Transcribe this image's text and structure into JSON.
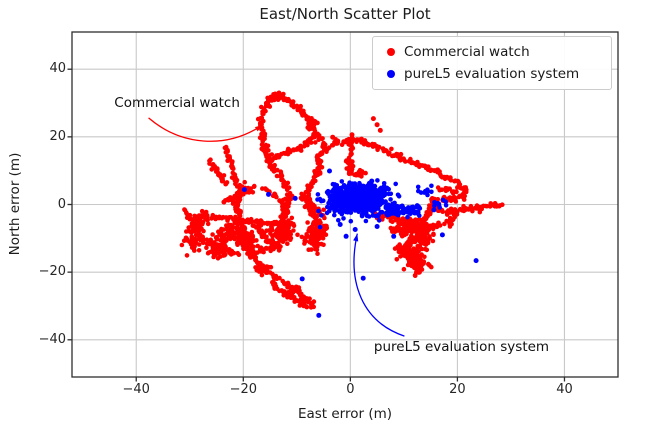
{
  "chart_data": {
    "type": "scatter",
    "title": "East/North Scatter Plot",
    "xlabel": "East error (m)",
    "ylabel": "North error (m)",
    "xlim": [
      -52,
      50
    ],
    "ylim": [
      -51,
      51
    ],
    "xticks": [
      -40,
      -20,
      0,
      20,
      40
    ],
    "yticks": [
      -40,
      -20,
      0,
      20,
      40
    ],
    "grid": true,
    "grid_color": "#c9c9c9",
    "spine_color": "#2e2e2e",
    "legend_position": "upper right",
    "series": [
      {
        "name": "Commercial watch",
        "color": "#ff0000",
        "marker_radius_px": 2.3,
        "pattern": "gps-track",
        "track_paths": [
          [
            [
              -15.4,
              13.2
            ],
            [
              -15.9,
              16.5
            ],
            [
              -16.3,
              20
            ],
            [
              -16.6,
              24
            ],
            [
              -16.2,
              28
            ],
            [
              -15.1,
              31
            ],
            [
              -13.9,
              32.6
            ],
            [
              -12.5,
              31.8
            ],
            [
              -10.8,
              29.8
            ],
            [
              -9,
              27.4
            ],
            [
              -7.6,
              24.6
            ],
            [
              -6.6,
              22
            ],
            [
              -6.3,
              20.8
            ],
            [
              -7.6,
              18.8
            ],
            [
              -9.6,
              16.8
            ],
            [
              -11.8,
              15.2
            ],
            [
              -13.8,
              14
            ],
            [
              -15.4,
              13.2
            ]
          ],
          [
            [
              -15.4,
              13.2
            ],
            [
              -14.2,
              10.8
            ],
            [
              -13,
              8.4
            ],
            [
              -12.1,
              5.8
            ],
            [
              -11.5,
              3
            ],
            [
              -11.7,
              0.4
            ],
            [
              -12.2,
              -2.2
            ],
            [
              -12.5,
              -4.8
            ],
            [
              -12.9,
              -7.4
            ],
            [
              -13.1,
              -10
            ]
          ],
          [
            [
              -5.6,
              10.6
            ],
            [
              -6.1,
              13.4
            ],
            [
              -4.9,
              16.4
            ],
            [
              -2.6,
              18.3
            ],
            [
              -0.2,
              18.9
            ],
            [
              2.3,
              18.4
            ],
            [
              4.8,
              17
            ],
            [
              7.3,
              15.2
            ],
            [
              9.8,
              13.6
            ],
            [
              12.2,
              12
            ],
            [
              14.4,
              10.7
            ]
          ],
          [
            [
              -5.6,
              10.6
            ],
            [
              -6.6,
              8
            ],
            [
              -7.6,
              5.2
            ],
            [
              -8.2,
              2.4
            ],
            [
              -8,
              -0.4
            ],
            [
              -7.1,
              -3
            ],
            [
              -5.7,
              -5.2
            ],
            [
              -4.3,
              -6.9
            ]
          ],
          [
            [
              14.4,
              10.7
            ],
            [
              16.4,
              9.4
            ],
            [
              18.4,
              7.8
            ],
            [
              20.2,
              6
            ],
            [
              21.4,
              4.2
            ],
            [
              21.2,
              2.6
            ],
            [
              19.6,
              1.8
            ],
            [
              17.4,
              1.8
            ],
            [
              15.4,
              1.2
            ],
            [
              15,
              -0.6
            ],
            [
              16.6,
              -1.8
            ],
            [
              19,
              -2
            ],
            [
              21.6,
              -1.4
            ],
            [
              24,
              -0.6
            ],
            [
              26.5,
              -0.2
            ],
            [
              28.4,
              -0.5
            ]
          ],
          [
            [
              16.8,
              4.8
            ],
            [
              18.4,
              4.4
            ],
            [
              19.9,
              3.7
            ]
          ],
          [
            [
              19.8,
              -2.6
            ],
            [
              18.8,
              -4.4
            ],
            [
              18.2,
              -6.3
            ]
          ],
          [
            [
              15.2,
              -1
            ],
            [
              14.2,
              -3.2
            ],
            [
              13.6,
              -5.6
            ],
            [
              13,
              -7.8
            ]
          ],
          [
            [
              9.6,
              -13.4
            ],
            [
              11,
              -15.8
            ],
            [
              12.4,
              -17.8
            ],
            [
              13,
              -19.8
            ],
            [
              12.2,
              -20.9
            ]
          ],
          [
            [
              -20,
              6.2
            ],
            [
              -20.6,
              3.4
            ],
            [
              -21,
              0.6
            ],
            [
              -21,
              -2.4
            ],
            [
              -20.6,
              -5.4
            ],
            [
              -20.2,
              -8.2
            ],
            [
              -19.6,
              -11.2
            ],
            [
              -19.2,
              -14
            ]
          ],
          [
            [
              -28.6,
              -3.2
            ],
            [
              -25.6,
              -3.8
            ],
            [
              -22.6,
              -4.2
            ],
            [
              -19.6,
              -4.8
            ],
            [
              -16.6,
              -5.2
            ],
            [
              -13.6,
              -5.8
            ],
            [
              -10.9,
              -6.2
            ]
          ],
          [
            [
              -29.4,
              -8
            ],
            [
              -27.4,
              -10
            ],
            [
              -25.4,
              -12
            ],
            [
              -23.4,
              -13.8
            ],
            [
              -21.2,
              -14.6
            ]
          ],
          [
            [
              -17.6,
              5.4
            ],
            [
              -19.6,
              3.8
            ],
            [
              -21.6,
              2.2
            ],
            [
              -23.6,
              0.8
            ]
          ],
          [
            [
              -16.2,
              4.6
            ],
            [
              -14.2,
              2.6
            ],
            [
              -12.7,
              0.6
            ],
            [
              -12.1,
              -1.6
            ],
            [
              -12,
              -4
            ]
          ],
          [
            [
              -9.2,
              2.2
            ],
            [
              -7.4,
              0.2
            ],
            [
              -5.9,
              -1.8
            ],
            [
              -4.9,
              -3.9
            ]
          ],
          [
            [
              -18,
              -6
            ],
            [
              -16.5,
              -8.5
            ],
            [
              -15.1,
              -11
            ],
            [
              -13.6,
              -13.4
            ]
          ],
          [
            [
              -13,
              -11
            ],
            [
              -14.6,
              -12.5
            ],
            [
              -16.6,
              -13.5
            ],
            [
              -18.6,
              -14
            ]
          ],
          [
            [
              -23.2,
              17
            ],
            [
              -22.6,
              14
            ],
            [
              -22.1,
              11
            ],
            [
              -21.6,
              8
            ],
            [
              -21.1,
              5.5
            ]
          ],
          [
            [
              -26.2,
              13
            ],
            [
              -25.2,
              10.5
            ],
            [
              -24.2,
              8
            ],
            [
              -23.2,
              5.5
            ]
          ],
          [
            [
              -31,
              -1.5
            ],
            [
              -30.2,
              -3.5
            ],
            [
              -29.2,
              -5.5
            ],
            [
              -28.6,
              -7.5
            ]
          ],
          [
            [
              -19,
              -14.3
            ],
            [
              -17.6,
              -16.9
            ],
            [
              -16,
              -19.3
            ],
            [
              -14.2,
              -21.5
            ],
            [
              -12.2,
              -23.5
            ],
            [
              -10.2,
              -25.3
            ],
            [
              -8.6,
              -27.3
            ],
            [
              -7.4,
              -29.3
            ],
            [
              -6.8,
              -30.7
            ]
          ],
          [
            [
              -14.8,
              -23.3
            ],
            [
              -12.8,
              -25.5
            ],
            [
              -10.8,
              -27.5
            ],
            [
              -9.2,
              -29.1
            ],
            [
              -8.1,
              -30.3
            ]
          ],
          [
            [
              5,
              -3.4
            ],
            [
              7.4,
              -4
            ],
            [
              9.8,
              -4.4
            ],
            [
              12.2,
              -4.8
            ]
          ],
          [
            [
              8.2,
              -4.6
            ],
            [
              10.6,
              -5.4
            ],
            [
              13,
              -6.2
            ],
            [
              15.4,
              -6.6
            ],
            [
              17.1,
              -6.1
            ]
          ],
          [
            [
              -4.4,
              -7.2
            ],
            [
              -5.8,
              -9.2
            ],
            [
              -6.7,
              -11.4
            ],
            [
              -6.3,
              -13.6
            ]
          ],
          [
            [
              0,
              18.6
            ],
            [
              0.2,
              15.8
            ],
            [
              0,
              13
            ],
            [
              -0.2,
              10.4
            ],
            [
              0,
              9
            ]
          ],
          [
            [
              -6.3,
              20.8
            ],
            [
              -5.4,
              19.4
            ],
            [
              -4.8,
              17.9
            ]
          ]
        ],
        "clusters": [
          {
            "cx": -7.4,
            "cy": 23.6,
            "sx": 0.55,
            "sy": 0.85,
            "n": 22
          },
          {
            "cx": -14,
            "cy": 31.6,
            "sx": 0.65,
            "sy": 0.55,
            "n": 16
          },
          {
            "cx": -22,
            "cy": -9,
            "sx": 1.6,
            "sy": 1.9,
            "n": 85
          },
          {
            "cx": -12.5,
            "cy": -8.5,
            "sx": 1.4,
            "sy": 1.8,
            "n": 80
          },
          {
            "cx": -28.5,
            "cy": -5.5,
            "sx": 0.85,
            "sy": 1.35,
            "n": 40
          },
          {
            "cx": -25,
            "cy": -13,
            "sx": 1.2,
            "sy": 1.2,
            "n": 45
          },
          {
            "cx": -19,
            "cy": -11,
            "sx": 1.1,
            "sy": 1.3,
            "n": 42
          },
          {
            "cx": -29.5,
            "cy": -11,
            "sx": 0.9,
            "sy": 1.4,
            "n": 35
          },
          {
            "cx": -16.2,
            "cy": -19.2,
            "sx": 0.75,
            "sy": 0.85,
            "n": 26
          },
          {
            "cx": -10.6,
            "cy": -25.2,
            "sx": 0.65,
            "sy": 0.75,
            "n": 22
          },
          {
            "cx": 10.5,
            "cy": -7,
            "sx": 1.5,
            "sy": 1.15,
            "n": 75
          },
          {
            "cx": 13,
            "cy": -10,
            "sx": 1.35,
            "sy": 1.4,
            "n": 65
          },
          {
            "cx": 11,
            "cy": -13.5,
            "sx": 1.4,
            "sy": 1.25,
            "n": 60
          },
          {
            "cx": 12.5,
            "cy": -17,
            "sx": 1.0,
            "sy": 1.15,
            "n": 45
          },
          {
            "cx": -6.5,
            "cy": -7.5,
            "sx": 1.0,
            "sy": 0.95,
            "n": 35
          },
          {
            "cx": -7,
            "cy": -10.5,
            "sx": 0.95,
            "sy": 1.15,
            "n": 40
          },
          {
            "cx": 1.5,
            "cy": 9.3,
            "sx": 0.55,
            "sy": 0.45,
            "n": 14
          }
        ],
        "points": [
          [
            4.3,
            25.4
          ],
          [
            5.0,
            23.6
          ],
          [
            5.6,
            21.9
          ],
          [
            0.3,
            20.6
          ],
          [
            -3.3,
            19.9
          ]
        ]
      },
      {
        "name": "pureL5 evaluation system",
        "color": "#0000ff",
        "marker_radius_px": 2.3,
        "pattern": "cluster",
        "track_paths": [],
        "clusters": [
          {
            "cx": 1.6,
            "cy": 1.6,
            "sx": 2.6,
            "sy": 2.0,
            "n": 560,
            "clip": [
              -6.2,
              9.3,
              -7.2,
              9.2
            ]
          },
          {
            "cx": 1.2,
            "cy": 1.2,
            "sx": 4.0,
            "sy": 3.0,
            "n": 140,
            "clip": [
              -6.2,
              9.3,
              -7.2,
              9.2
            ]
          },
          {
            "cx": 14.3,
            "cy": 4.0,
            "sx": 0.8,
            "sy": 0.7,
            "n": 10
          },
          {
            "cx": 16.8,
            "cy": 0.3,
            "sx": 0.9,
            "sy": 0.6,
            "n": 10
          }
        ],
        "streaks": [
          {
            "x1": 6.5,
            "x2": 13.2,
            "y": -1.8,
            "sy": 0.85,
            "n": 70
          }
        ],
        "points": [
          [
            -19.8,
            4.4
          ],
          [
            -15.3,
            3.0
          ],
          [
            -10.3,
            1.8
          ],
          [
            -3.9,
            9.9
          ],
          [
            -1.9,
            -5.9
          ],
          [
            0.9,
            -7.4
          ],
          [
            5.0,
            -6.5
          ],
          [
            -0.8,
            -9.4
          ],
          [
            8.1,
            -9.4
          ],
          [
            17.2,
            -9.0
          ],
          [
            15.6,
            -1.6
          ],
          [
            23.5,
            -16.6
          ],
          [
            -9.0,
            -22.0
          ],
          [
            2.4,
            -21.8
          ],
          [
            -5.9,
            -32.8
          ]
        ]
      }
    ]
  },
  "annotations": [
    {
      "id": "commercial-watch",
      "text": "Commercial watch",
      "text_color": "#111111",
      "arrow_color": "#ff0000",
      "xytext": [
        -44.1,
        32.4
      ],
      "curve": [
        [
          -37.7,
          25.6
        ],
        [
          -31.8,
          17.6
        ],
        [
          -23.4,
          16.1
        ],
        [
          -16.4,
          23.5
        ]
      ]
    },
    {
      "id": "purel5-evaluation-system",
      "text": "pureL5 evaluation system",
      "text_color": "#111111",
      "arrow_color": "#0000ff",
      "xytext": [
        4.4,
        -39.8
      ],
      "curve": [
        [
          10.1,
          -38.9
        ],
        [
          2.2,
          -34.7
        ],
        [
          -0.7,
          -22.9
        ],
        [
          1.3,
          -8.6
        ]
      ]
    }
  ]
}
